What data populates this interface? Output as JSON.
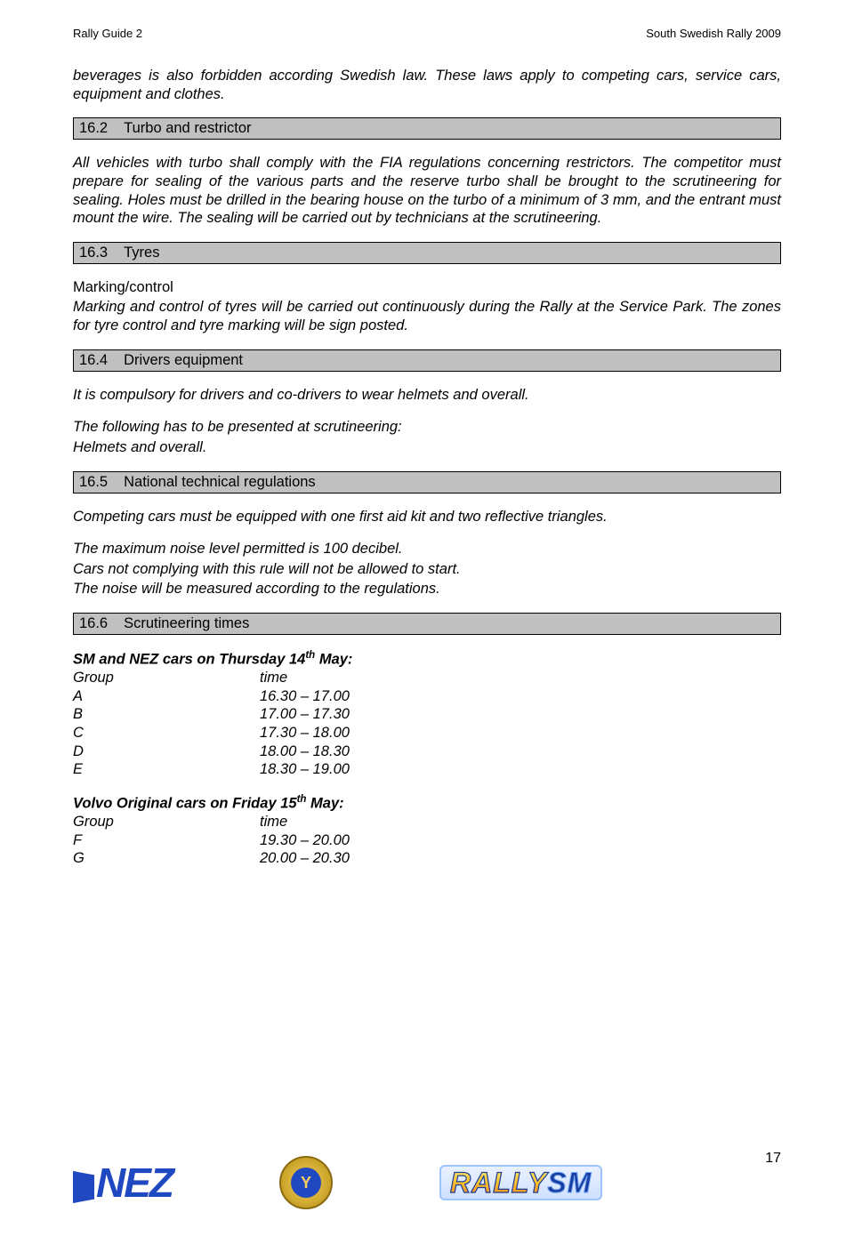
{
  "header": {
    "left": "Rally Guide 2",
    "right": "South Swedish Rally 2009"
  },
  "intro_para": "beverages is also forbidden according Swedish law. These laws apply to competing cars, service cars, equipment and clothes.",
  "sections": {
    "s162": {
      "num": "16.2",
      "title": "Turbo and restrictor"
    },
    "s163": {
      "num": "16.3",
      "title": "Tyres"
    },
    "s164": {
      "num": "16.4",
      "title": "Drivers equipment"
    },
    "s165": {
      "num": "16.5",
      "title": "National technical regulations"
    },
    "s166": {
      "num": "16.6",
      "title": "Scrutineering times"
    }
  },
  "body162": "All vehicles with turbo shall comply with the FIA regulations concerning restrictors. The competitor must prepare for sealing of the various parts and the reserve turbo shall be brought to the scrutineering for sealing. Holes must be drilled in the bearing house on the turbo of a minimum of 3 mm, and the entrant must mount the wire. The sealing will be carried out by technicians at the scrutineering.",
  "body163_label": "Marking/control",
  "body163": "Marking and control of tyres will be carried out continuously during the Rally at the Service Park. The zones for tyre control and tyre marking will be sign posted.",
  "body164_a": "It is compulsory for drivers and co-drivers to wear helmets and overall.",
  "body164_b": "The following has to be presented at scrutineering:",
  "body164_c": "Helmets and overall.",
  "body165_a": "Competing cars must be equipped with one first aid kit and two reflective triangles.",
  "body165_b": "The maximum noise level permitted is 100 decibel.",
  "body165_c": "Cars not complying with this rule will not be allowed to start.",
  "body165_d": "The noise will be measured according to the regulations.",
  "schedule1": {
    "title_pre": "SM and NEZ cars on Thursday 14",
    "title_sup": "th",
    "title_post": " May:",
    "head_group": "Group",
    "head_time": "time",
    "rows": [
      {
        "g": "A",
        "t": "16.30 – 17.00"
      },
      {
        "g": "B",
        "t": "17.00 – 17.30"
      },
      {
        "g": "C",
        "t": "17.30 – 18.00"
      },
      {
        "g": "D",
        "t": "18.00 – 18.30"
      },
      {
        "g": "E",
        "t": "18.30 – 19.00"
      }
    ]
  },
  "schedule2": {
    "title_pre": "Volvo Original cars on Friday 15",
    "title_sup": "th",
    "title_post": " May:",
    "head_group": "Group",
    "head_time": "time",
    "rows": [
      {
        "g": "F",
        "t": "19.30 – 20.00"
      },
      {
        "g": "G",
        "t": "20.00 – 20.30"
      }
    ]
  },
  "footer": {
    "page_number": "17",
    "logo_nez": "NEZ",
    "logo_rally": "RALLY",
    "logo_sm": "SM",
    "medal_letter": "Y"
  },
  "colors": {
    "heading_bg": "#c0c0c0",
    "nez_blue": "#2048c0",
    "gold1": "#f4d060",
    "gold2": "#c9a227"
  }
}
